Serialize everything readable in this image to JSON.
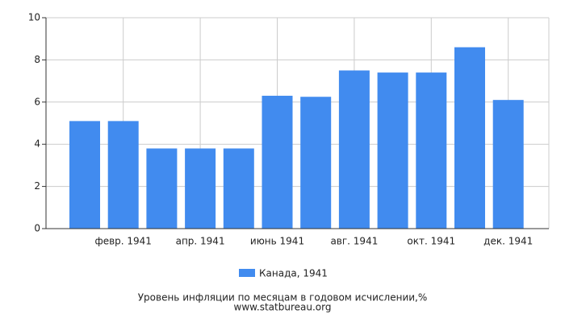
{
  "chart_data": {
    "type": "bar",
    "title": "Уровень инфляции по месяцам в годовом исчислении,%",
    "source": "www.statbureau.org",
    "categories": [
      null,
      "февр. 1941",
      null,
      "апр. 1941",
      null,
      "июнь 1941",
      null,
      "авг. 1941",
      null,
      "окт. 1941",
      null,
      "дек. 1941"
    ],
    "series": [
      {
        "name": "Канада, 1941",
        "color": "#418bef",
        "values": [
          5.1,
          5.1,
          3.8,
          3.8,
          3.8,
          6.3,
          6.25,
          7.5,
          7.4,
          7.4,
          8.6,
          6.1
        ]
      }
    ],
    "ylim": [
      0,
      10
    ],
    "yticks": [
      0,
      2,
      4,
      6,
      8,
      10
    ],
    "grid": true,
    "legend": "bottom"
  }
}
